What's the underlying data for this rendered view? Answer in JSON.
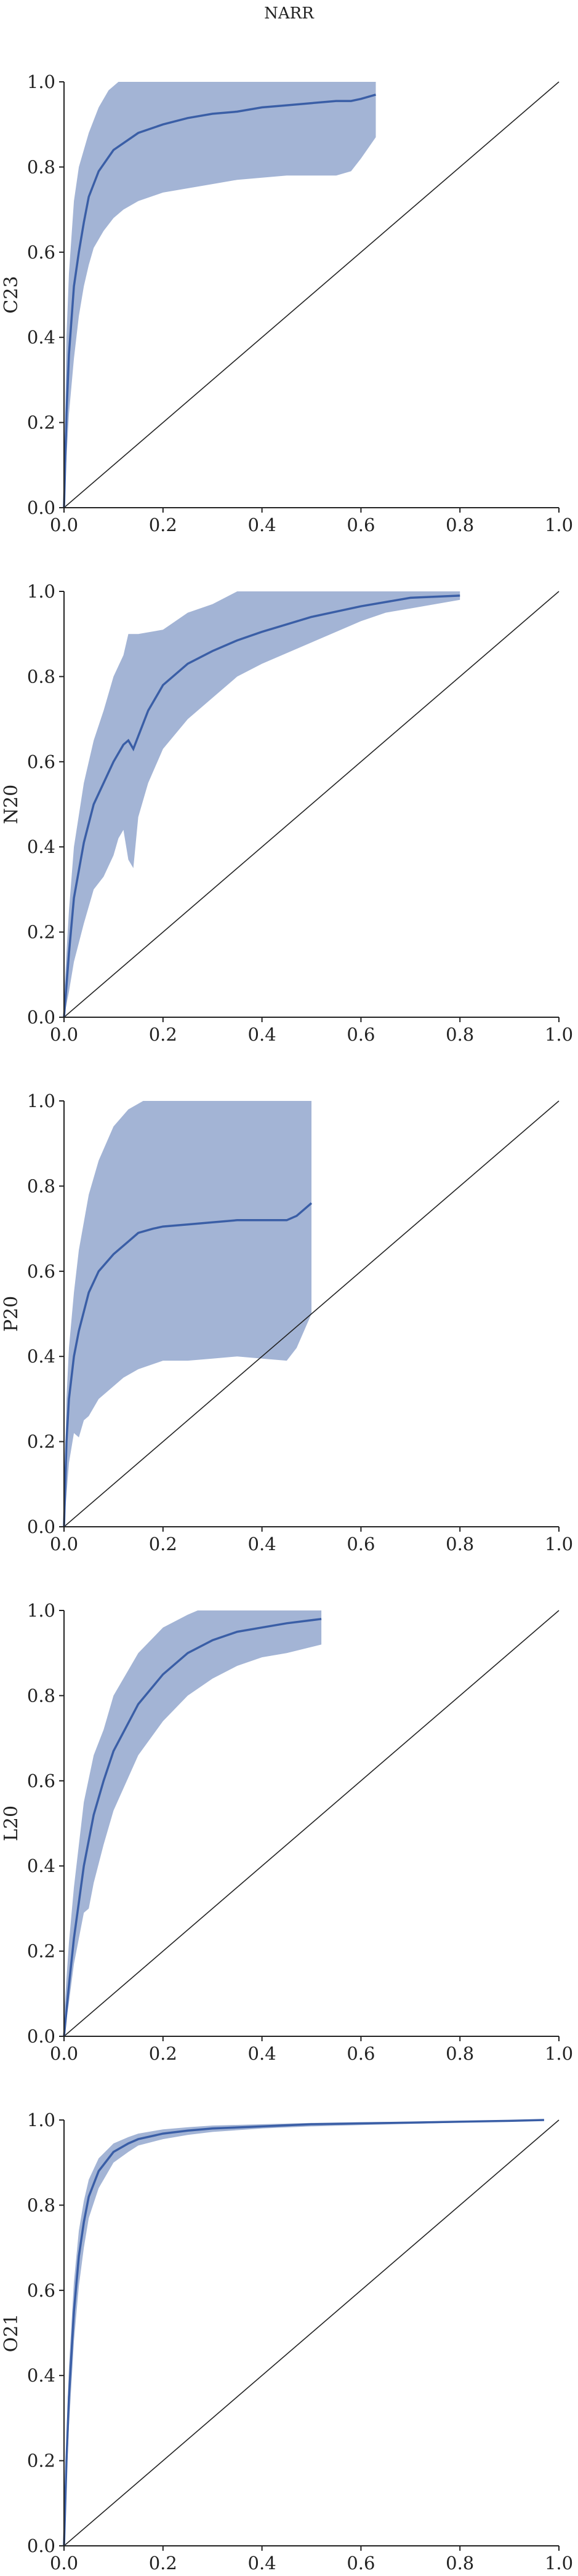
{
  "figure_title": "NARR",
  "chart_data": [
    {
      "type": "line",
      "title": "",
      "xlabel": "",
      "ylabel": "C23",
      "xlim": [
        0,
        1
      ],
      "ylim": [
        0,
        1
      ],
      "xticks": [
        "0.0",
        "0.2",
        "0.4",
        "0.6",
        "0.8",
        "1.0"
      ],
      "yticks": [
        "0.0",
        "0.2",
        "0.4",
        "0.6",
        "0.8",
        "1.0"
      ],
      "reference_line": "y = x",
      "grid": false,
      "series_color": "#3a5ea6",
      "mean": {
        "x": [
          0,
          0.005,
          0.01,
          0.02,
          0.03,
          0.04,
          0.05,
          0.07,
          0.1,
          0.15,
          0.2,
          0.25,
          0.3,
          0.35,
          0.4,
          0.45,
          0.5,
          0.55,
          0.58,
          0.6,
          0.63
        ],
        "y": [
          0,
          0.22,
          0.36,
          0.52,
          0.6,
          0.67,
          0.73,
          0.79,
          0.84,
          0.88,
          0.9,
          0.915,
          0.925,
          0.93,
          0.94,
          0.945,
          0.95,
          0.955,
          0.955,
          0.96,
          0.97
        ]
      },
      "upper": {
        "x": [
          0,
          0.005,
          0.01,
          0.02,
          0.03,
          0.05,
          0.07,
          0.09,
          0.11,
          0.15,
          0.2,
          0.3,
          0.4,
          0.5,
          0.6,
          0.63
        ],
        "y": [
          0.05,
          0.4,
          0.55,
          0.72,
          0.8,
          0.88,
          0.94,
          0.98,
          1.0,
          1.0,
          1.0,
          1.0,
          1.0,
          1.0,
          1.0,
          1.0
        ]
      },
      "lower": {
        "x": [
          0,
          0.005,
          0.01,
          0.02,
          0.03,
          0.04,
          0.05,
          0.06,
          0.08,
          0.1,
          0.12,
          0.15,
          0.2,
          0.25,
          0.3,
          0.35,
          0.4,
          0.45,
          0.5,
          0.55,
          0.58,
          0.6,
          0.63
        ],
        "y": [
          0,
          0.12,
          0.22,
          0.35,
          0.45,
          0.52,
          0.57,
          0.61,
          0.65,
          0.68,
          0.7,
          0.72,
          0.74,
          0.75,
          0.76,
          0.77,
          0.775,
          0.78,
          0.78,
          0.78,
          0.79,
          0.82,
          0.87
        ]
      }
    },
    {
      "type": "line",
      "title": "",
      "xlabel": "",
      "ylabel": "N20",
      "xlim": [
        0,
        1
      ],
      "ylim": [
        0,
        1
      ],
      "xticks": [
        "0.0",
        "0.2",
        "0.4",
        "0.6",
        "0.8",
        "1.0"
      ],
      "yticks": [
        "0.0",
        "0.2",
        "0.4",
        "0.6",
        "0.8",
        "1.0"
      ],
      "reference_line": "y = x",
      "grid": false,
      "series_color": "#3a5ea6",
      "mean": {
        "x": [
          0,
          0.01,
          0.02,
          0.04,
          0.06,
          0.08,
          0.1,
          0.12,
          0.13,
          0.14,
          0.15,
          0.17,
          0.2,
          0.25,
          0.3,
          0.35,
          0.4,
          0.5,
          0.6,
          0.7,
          0.8
        ],
        "y": [
          0,
          0.15,
          0.28,
          0.41,
          0.5,
          0.55,
          0.6,
          0.64,
          0.65,
          0.63,
          0.66,
          0.72,
          0.78,
          0.83,
          0.86,
          0.885,
          0.905,
          0.94,
          0.965,
          0.985,
          0.99
        ]
      },
      "upper": {
        "x": [
          0,
          0.01,
          0.02,
          0.04,
          0.06,
          0.08,
          0.1,
          0.12,
          0.13,
          0.15,
          0.2,
          0.25,
          0.3,
          0.35,
          0.4,
          0.5,
          0.6,
          0.7,
          0.8
        ],
        "y": [
          0.05,
          0.25,
          0.4,
          0.55,
          0.65,
          0.72,
          0.8,
          0.85,
          0.9,
          0.9,
          0.91,
          0.95,
          0.97,
          1.0,
          1.0,
          1.0,
          1.0,
          1.0,
          1.0
        ]
      },
      "lower": {
        "x": [
          0,
          0.01,
          0.02,
          0.04,
          0.06,
          0.08,
          0.1,
          0.11,
          0.12,
          0.13,
          0.14,
          0.15,
          0.17,
          0.2,
          0.25,
          0.3,
          0.35,
          0.4,
          0.5,
          0.6,
          0.65,
          0.7,
          0.75,
          0.8
        ],
        "y": [
          0,
          0.06,
          0.13,
          0.22,
          0.3,
          0.33,
          0.38,
          0.42,
          0.44,
          0.37,
          0.35,
          0.47,
          0.55,
          0.63,
          0.7,
          0.75,
          0.8,
          0.83,
          0.88,
          0.93,
          0.95,
          0.96,
          0.97,
          0.98
        ]
      }
    },
    {
      "type": "line",
      "title": "",
      "xlabel": "",
      "ylabel": "P20",
      "xlim": [
        0,
        1
      ],
      "ylim": [
        0,
        1
      ],
      "xticks": [
        "0.0",
        "0.2",
        "0.4",
        "0.6",
        "0.8",
        "1.0"
      ],
      "yticks": [
        "0.0",
        "0.2",
        "0.4",
        "0.6",
        "0.8",
        "1.0"
      ],
      "reference_line": "y = x",
      "grid": false,
      "series_color": "#3a5ea6",
      "mean": {
        "x": [
          0,
          0.005,
          0.01,
          0.02,
          0.03,
          0.05,
          0.07,
          0.1,
          0.13,
          0.15,
          0.18,
          0.2,
          0.25,
          0.3,
          0.35,
          0.4,
          0.45,
          0.47,
          0.5
        ],
        "y": [
          0,
          0.2,
          0.3,
          0.4,
          0.46,
          0.55,
          0.6,
          0.64,
          0.67,
          0.69,
          0.7,
          0.705,
          0.71,
          0.715,
          0.72,
          0.72,
          0.72,
          0.73,
          0.76
        ]
      },
      "upper": {
        "x": [
          0,
          0.005,
          0.01,
          0.02,
          0.03,
          0.05,
          0.07,
          0.1,
          0.13,
          0.16,
          0.18,
          0.2,
          0.25,
          0.3,
          0.4,
          0.5
        ],
        "y": [
          0.05,
          0.3,
          0.42,
          0.55,
          0.65,
          0.78,
          0.86,
          0.94,
          0.98,
          1.0,
          1.0,
          1.0,
          1.0,
          1.0,
          1.0,
          1.0
        ]
      },
      "lower": {
        "x": [
          0,
          0.01,
          0.02,
          0.03,
          0.04,
          0.05,
          0.07,
          0.1,
          0.12,
          0.15,
          0.2,
          0.25,
          0.3,
          0.35,
          0.4,
          0.45,
          0.47,
          0.5
        ],
        "y": [
          0,
          0.15,
          0.22,
          0.21,
          0.25,
          0.26,
          0.3,
          0.33,
          0.35,
          0.37,
          0.39,
          0.39,
          0.395,
          0.4,
          0.395,
          0.39,
          0.42,
          0.5
        ]
      }
    },
    {
      "type": "line",
      "title": "",
      "xlabel": "",
      "ylabel": "L20",
      "xlim": [
        0,
        1
      ],
      "ylim": [
        0,
        1
      ],
      "xticks": [
        "0.0",
        "0.2",
        "0.4",
        "0.6",
        "0.8",
        "1.0"
      ],
      "yticks": [
        "0.0",
        "0.2",
        "0.4",
        "0.6",
        "0.8",
        "1.0"
      ],
      "reference_line": "y = x",
      "grid": false,
      "series_color": "#3a5ea6",
      "mean": {
        "x": [
          0,
          0.01,
          0.02,
          0.04,
          0.06,
          0.08,
          0.1,
          0.15,
          0.2,
          0.25,
          0.3,
          0.35,
          0.4,
          0.45,
          0.52
        ],
        "y": [
          0,
          0.12,
          0.23,
          0.4,
          0.52,
          0.6,
          0.67,
          0.78,
          0.85,
          0.9,
          0.93,
          0.95,
          0.96,
          0.97,
          0.98
        ]
      },
      "upper": {
        "x": [
          0,
          0.01,
          0.02,
          0.04,
          0.06,
          0.08,
          0.1,
          0.15,
          0.2,
          0.25,
          0.27,
          0.3,
          0.4,
          0.52
        ],
        "y": [
          0.05,
          0.22,
          0.35,
          0.55,
          0.66,
          0.72,
          0.8,
          0.9,
          0.96,
          0.99,
          1.0,
          1.0,
          1.0,
          1.0
        ]
      },
      "lower": {
        "x": [
          0,
          0.01,
          0.02,
          0.04,
          0.05,
          0.06,
          0.08,
          0.1,
          0.15,
          0.2,
          0.25,
          0.3,
          0.35,
          0.4,
          0.45,
          0.52
        ],
        "y": [
          0,
          0.08,
          0.17,
          0.29,
          0.3,
          0.36,
          0.45,
          0.53,
          0.66,
          0.74,
          0.8,
          0.84,
          0.87,
          0.89,
          0.9,
          0.92
        ]
      }
    },
    {
      "type": "line",
      "title": "",
      "xlabel": "",
      "ylabel": "O21",
      "xlim": [
        0,
        1
      ],
      "ylim": [
        0,
        1
      ],
      "xticks": [
        "0.0",
        "0.2",
        "0.4",
        "0.6",
        "0.8",
        "1.0"
      ],
      "yticks": [
        "0.0",
        "0.2",
        "0.4",
        "0.6",
        "0.8",
        "1.0"
      ],
      "reference_line": "y = x",
      "grid": false,
      "series_color": "#3a5ea6",
      "mean": {
        "x": [
          0,
          0.005,
          0.01,
          0.02,
          0.03,
          0.04,
          0.05,
          0.07,
          0.1,
          0.13,
          0.15,
          0.2,
          0.25,
          0.3,
          0.4,
          0.5,
          0.6,
          0.7,
          0.8,
          0.9,
          0.97
        ],
        "y": [
          0,
          0.2,
          0.35,
          0.55,
          0.68,
          0.76,
          0.82,
          0.88,
          0.925,
          0.945,
          0.955,
          0.968,
          0.975,
          0.98,
          0.985,
          0.99,
          0.992,
          0.994,
          0.996,
          0.998,
          1.0
        ]
      },
      "upper": {
        "x": [
          0,
          0.005,
          0.01,
          0.02,
          0.03,
          0.04,
          0.05,
          0.07,
          0.1,
          0.13,
          0.15,
          0.2,
          0.25,
          0.3,
          0.4,
          0.5,
          0.6,
          0.7,
          0.8,
          0.9,
          0.97
        ],
        "y": [
          0.02,
          0.25,
          0.42,
          0.62,
          0.74,
          0.81,
          0.86,
          0.91,
          0.945,
          0.96,
          0.968,
          0.978,
          0.983,
          0.987,
          0.99,
          0.993,
          0.995,
          0.996,
          0.998,
          0.999,
          1.0
        ]
      },
      "lower": {
        "x": [
          0,
          0.005,
          0.01,
          0.02,
          0.03,
          0.04,
          0.05,
          0.07,
          0.1,
          0.13,
          0.15,
          0.2,
          0.25,
          0.3,
          0.4,
          0.5,
          0.6,
          0.7,
          0.8,
          0.9,
          0.97
        ],
        "y": [
          0,
          0.15,
          0.28,
          0.48,
          0.61,
          0.7,
          0.77,
          0.84,
          0.9,
          0.925,
          0.94,
          0.955,
          0.965,
          0.972,
          0.98,
          0.985,
          0.988,
          0.991,
          0.994,
          0.997,
          0.999
        ]
      }
    }
  ]
}
